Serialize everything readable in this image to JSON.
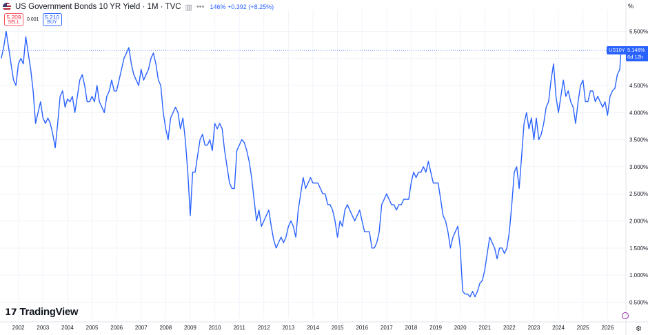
{
  "header": {
    "title": "US Government Bonds 10 YR Yield · 1M · TVC",
    "icons": [
      "eye-icon",
      "more-icon"
    ],
    "quote": "146% +0.392 (+8.25%)"
  },
  "trade": {
    "sell_price": "5.209",
    "sell_label": "SELL",
    "spread": "0.001",
    "buy_price": "5.210",
    "buy_label": "BUY"
  },
  "axis_unit": "%",
  "last_badge": {
    "symbol": "US10Y",
    "price": "5.146%",
    "countdown": "6d 12h"
  },
  "logo": "TradingView",
  "colors": {
    "line": "#2962ff",
    "grid": "#f0f3fa",
    "text": "#131722",
    "dotted": "#2962ff"
  },
  "chart_data": {
    "type": "line",
    "x_ticks": [
      "2002",
      "2003",
      "2004",
      "2005",
      "2006",
      "2007",
      "2008",
      "2009",
      "2010",
      "2011",
      "2012",
      "2013",
      "2014",
      "2015",
      "2016",
      "2017",
      "2018",
      "2019",
      "2020",
      "2021",
      "2022",
      "2023",
      "2024",
      "2025",
      "2026"
    ],
    "y_ticks": [
      "0.500%",
      "1.000%",
      "1.500%",
      "2.000%",
      "2.500%",
      "3.000%",
      "3.500%",
      "4.000%",
      "4.500%",
      "5.000%",
      "5.500%"
    ],
    "ylim": [
      0.2,
      5.9
    ],
    "xlim": [
      2001.25,
      2026.75
    ],
    "grid": true,
    "series": [
      {
        "points": [
          [
            2001.3,
            5.0
          ],
          [
            2001.4,
            5.2
          ],
          [
            2001.5,
            5.5
          ],
          [
            2001.6,
            5.2
          ],
          [
            2001.7,
            4.9
          ],
          [
            2001.8,
            4.6
          ],
          [
            2001.9,
            4.5
          ],
          [
            2002.0,
            4.9
          ],
          [
            2002.1,
            5.0
          ],
          [
            2002.2,
            4.9
          ],
          [
            2002.3,
            5.4
          ],
          [
            2002.4,
            5.1
          ],
          [
            2002.5,
            4.8
          ],
          [
            2002.6,
            4.4
          ],
          [
            2002.7,
            3.8
          ],
          [
            2002.8,
            4.0
          ],
          [
            2002.9,
            4.2
          ],
          [
            2003.0,
            3.9
          ],
          [
            2003.1,
            3.8
          ],
          [
            2003.2,
            3.9
          ],
          [
            2003.3,
            3.8
          ],
          [
            2003.4,
            3.6
          ],
          [
            2003.5,
            3.35
          ],
          [
            2003.6,
            3.8
          ],
          [
            2003.7,
            4.3
          ],
          [
            2003.8,
            4.4
          ],
          [
            2003.9,
            4.1
          ],
          [
            2004.0,
            4.25
          ],
          [
            2004.1,
            4.2
          ],
          [
            2004.2,
            4.3
          ],
          [
            2004.3,
            4.0
          ],
          [
            2004.4,
            4.3
          ],
          [
            2004.5,
            4.6
          ],
          [
            2004.6,
            4.7
          ],
          [
            2004.7,
            4.5
          ],
          [
            2004.8,
            4.2
          ],
          [
            2004.9,
            4.2
          ],
          [
            2005.0,
            4.3
          ],
          [
            2005.1,
            4.2
          ],
          [
            2005.2,
            4.5
          ],
          [
            2005.3,
            4.2
          ],
          [
            2005.4,
            4.1
          ],
          [
            2005.5,
            4.0
          ],
          [
            2005.6,
            4.3
          ],
          [
            2005.7,
            4.4
          ],
          [
            2005.8,
            4.6
          ],
          [
            2005.9,
            4.4
          ],
          [
            2006.0,
            4.4
          ],
          [
            2006.1,
            4.6
          ],
          [
            2006.2,
            4.8
          ],
          [
            2006.3,
            5.0
          ],
          [
            2006.4,
            5.1
          ],
          [
            2006.5,
            5.2
          ],
          [
            2006.6,
            4.9
          ],
          [
            2006.7,
            4.7
          ],
          [
            2006.8,
            4.6
          ],
          [
            2006.9,
            4.5
          ],
          [
            2007.0,
            4.8
          ],
          [
            2007.1,
            4.6
          ],
          [
            2007.2,
            4.7
          ],
          [
            2007.3,
            4.8
          ],
          [
            2007.4,
            5.0
          ],
          [
            2007.5,
            5.1
          ],
          [
            2007.6,
            4.9
          ],
          [
            2007.7,
            4.6
          ],
          [
            2007.8,
            4.5
          ],
          [
            2007.9,
            4.0
          ],
          [
            2008.0,
            3.7
          ],
          [
            2008.1,
            3.5
          ],
          [
            2008.2,
            3.9
          ],
          [
            2008.3,
            4.0
          ],
          [
            2008.4,
            4.1
          ],
          [
            2008.5,
            4.0
          ],
          [
            2008.6,
            3.7
          ],
          [
            2008.7,
            3.9
          ],
          [
            2008.8,
            3.5
          ],
          [
            2008.9,
            2.9
          ],
          [
            2009.0,
            2.1
          ],
          [
            2009.1,
            2.9
          ],
          [
            2009.2,
            2.9
          ],
          [
            2009.3,
            3.2
          ],
          [
            2009.4,
            3.5
          ],
          [
            2009.5,
            3.6
          ],
          [
            2009.6,
            3.4
          ],
          [
            2009.7,
            3.4
          ],
          [
            2009.8,
            3.5
          ],
          [
            2009.9,
            3.3
          ],
          [
            2010.0,
            3.8
          ],
          [
            2010.1,
            3.7
          ],
          [
            2010.2,
            3.8
          ],
          [
            2010.3,
            3.7
          ],
          [
            2010.4,
            3.3
          ],
          [
            2010.5,
            3.0
          ],
          [
            2010.6,
            2.7
          ],
          [
            2010.7,
            2.6
          ],
          [
            2010.8,
            2.6
          ],
          [
            2010.9,
            3.3
          ],
          [
            2011.0,
            3.4
          ],
          [
            2011.1,
            3.5
          ],
          [
            2011.2,
            3.45
          ],
          [
            2011.3,
            3.3
          ],
          [
            2011.4,
            3.1
          ],
          [
            2011.5,
            2.8
          ],
          [
            2011.6,
            2.4
          ],
          [
            2011.7,
            2.0
          ],
          [
            2011.8,
            2.2
          ],
          [
            2011.9,
            1.9
          ],
          [
            2012.0,
            2.0
          ],
          [
            2012.1,
            2.1
          ],
          [
            2012.2,
            2.2
          ],
          [
            2012.3,
            1.9
          ],
          [
            2012.4,
            1.65
          ],
          [
            2012.5,
            1.5
          ],
          [
            2012.6,
            1.6
          ],
          [
            2012.7,
            1.7
          ],
          [
            2012.8,
            1.6
          ],
          [
            2012.9,
            1.7
          ],
          [
            2013.0,
            1.9
          ],
          [
            2013.1,
            2.0
          ],
          [
            2013.2,
            1.9
          ],
          [
            2013.3,
            1.7
          ],
          [
            2013.4,
            2.2
          ],
          [
            2013.5,
            2.5
          ],
          [
            2013.6,
            2.8
          ],
          [
            2013.7,
            2.6
          ],
          [
            2013.8,
            2.7
          ],
          [
            2013.9,
            2.8
          ],
          [
            2014.0,
            2.7
          ],
          [
            2014.1,
            2.7
          ],
          [
            2014.2,
            2.7
          ],
          [
            2014.3,
            2.6
          ],
          [
            2014.4,
            2.5
          ],
          [
            2014.5,
            2.5
          ],
          [
            2014.6,
            2.3
          ],
          [
            2014.7,
            2.3
          ],
          [
            2014.8,
            2.2
          ],
          [
            2014.9,
            2.0
          ],
          [
            2015.0,
            1.7
          ],
          [
            2015.1,
            2.0
          ],
          [
            2015.2,
            1.9
          ],
          [
            2015.3,
            2.2
          ],
          [
            2015.4,
            2.3
          ],
          [
            2015.5,
            2.2
          ],
          [
            2015.6,
            2.1
          ],
          [
            2015.7,
            2.0
          ],
          [
            2015.8,
            2.1
          ],
          [
            2015.9,
            2.2
          ],
          [
            2016.0,
            2.0
          ],
          [
            2016.1,
            1.8
          ],
          [
            2016.2,
            1.8
          ],
          [
            2016.3,
            1.8
          ],
          [
            2016.4,
            1.5
          ],
          [
            2016.5,
            1.5
          ],
          [
            2016.6,
            1.6
          ],
          [
            2016.7,
            1.8
          ],
          [
            2016.8,
            2.3
          ],
          [
            2016.9,
            2.4
          ],
          [
            2017.0,
            2.5
          ],
          [
            2017.1,
            2.4
          ],
          [
            2017.2,
            2.3
          ],
          [
            2017.3,
            2.3
          ],
          [
            2017.4,
            2.2
          ],
          [
            2017.5,
            2.3
          ],
          [
            2017.6,
            2.3
          ],
          [
            2017.7,
            2.4
          ],
          [
            2017.8,
            2.4
          ],
          [
            2017.9,
            2.4
          ],
          [
            2018.0,
            2.7
          ],
          [
            2018.1,
            2.9
          ],
          [
            2018.2,
            2.8
          ],
          [
            2018.3,
            2.9
          ],
          [
            2018.4,
            2.9
          ],
          [
            2018.5,
            3.0
          ],
          [
            2018.6,
            2.9
          ],
          [
            2018.7,
            3.1
          ],
          [
            2018.8,
            2.9
          ],
          [
            2018.9,
            2.7
          ],
          [
            2019.0,
            2.7
          ],
          [
            2019.1,
            2.7
          ],
          [
            2019.2,
            2.4
          ],
          [
            2019.3,
            2.1
          ],
          [
            2019.4,
            2.0
          ],
          [
            2019.5,
            1.8
          ],
          [
            2019.6,
            1.5
          ],
          [
            2019.7,
            1.7
          ],
          [
            2019.8,
            1.8
          ],
          [
            2019.9,
            1.9
          ],
          [
            2020.0,
            1.5
          ],
          [
            2020.1,
            0.7
          ],
          [
            2020.2,
            0.65
          ],
          [
            2020.3,
            0.65
          ],
          [
            2020.4,
            0.6
          ],
          [
            2020.5,
            0.7
          ],
          [
            2020.6,
            0.6
          ],
          [
            2020.7,
            0.7
          ],
          [
            2020.8,
            0.85
          ],
          [
            2020.9,
            0.9
          ],
          [
            2021.0,
            1.1
          ],
          [
            2021.1,
            1.4
          ],
          [
            2021.2,
            1.7
          ],
          [
            2021.3,
            1.6
          ],
          [
            2021.4,
            1.5
          ],
          [
            2021.5,
            1.3
          ],
          [
            2021.6,
            1.5
          ],
          [
            2021.7,
            1.5
          ],
          [
            2021.8,
            1.4
          ],
          [
            2021.9,
            1.5
          ],
          [
            2022.0,
            1.8
          ],
          [
            2022.1,
            2.3
          ],
          [
            2022.2,
            2.9
          ],
          [
            2022.3,
            3.0
          ],
          [
            2022.4,
            2.6
          ],
          [
            2022.5,
            3.2
          ],
          [
            2022.6,
            3.8
          ],
          [
            2022.7,
            4.0
          ],
          [
            2022.8,
            3.7
          ],
          [
            2022.9,
            3.9
          ],
          [
            2023.0,
            3.5
          ],
          [
            2023.1,
            3.9
          ],
          [
            2023.2,
            3.5
          ],
          [
            2023.3,
            3.6
          ],
          [
            2023.4,
            3.8
          ],
          [
            2023.5,
            4.1
          ],
          [
            2023.6,
            4.2
          ],
          [
            2023.7,
            4.6
          ],
          [
            2023.8,
            4.9
          ],
          [
            2023.9,
            4.3
          ],
          [
            2024.0,
            4.0
          ],
          [
            2024.1,
            4.3
          ],
          [
            2024.2,
            4.6
          ],
          [
            2024.3,
            4.3
          ],
          [
            2024.4,
            4.4
          ],
          [
            2024.5,
            4.2
          ],
          [
            2024.6,
            4.1
          ],
          [
            2024.7,
            3.8
          ],
          [
            2024.8,
            4.2
          ],
          [
            2024.9,
            4.5
          ],
          [
            2025.0,
            4.6
          ],
          [
            2025.1,
            4.2
          ],
          [
            2025.2,
            4.2
          ],
          [
            2025.3,
            4.4
          ],
          [
            2025.4,
            4.4
          ],
          [
            2025.5,
            4.2
          ],
          [
            2025.6,
            4.3
          ],
          [
            2025.7,
            4.2
          ],
          [
            2025.8,
            4.1
          ],
          [
            2025.9,
            4.2
          ],
          [
            2026.0,
            3.95
          ],
          [
            2026.1,
            4.3
          ],
          [
            2026.2,
            4.4
          ],
          [
            2026.3,
            4.45
          ],
          [
            2026.4,
            4.7
          ],
          [
            2026.5,
            4.8
          ],
          [
            2026.55,
            5.146
          ]
        ]
      }
    ],
    "last_value": 5.146
  }
}
